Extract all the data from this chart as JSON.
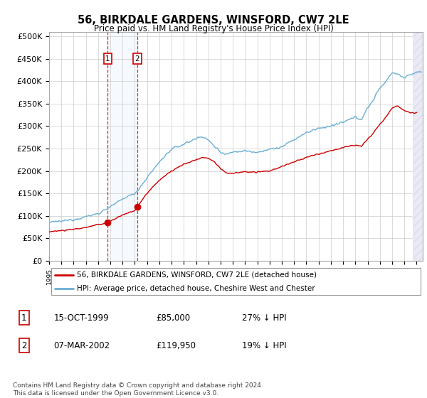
{
  "title": "56, BIRKDALE GARDENS, WINSFORD, CW7 2LE",
  "subtitle": "Price paid vs. HM Land Registry's House Price Index (HPI)",
  "ylabel_ticks": [
    "£0",
    "£50K",
    "£100K",
    "£150K",
    "£200K",
    "£250K",
    "£300K",
    "£350K",
    "£400K",
    "£450K",
    "£500K"
  ],
  "ylim": [
    0,
    510000
  ],
  "xlim_start": 1995.0,
  "xlim_end": 2025.5,
  "sale1_date": 1999.79,
  "sale1_price": 85000,
  "sale1_label": "1",
  "sale2_date": 2002.18,
  "sale2_price": 119950,
  "sale2_label": "2",
  "legend_line1": "56, BIRKDALE GARDENS, WINSFORD, CW7 2LE (detached house)",
  "legend_line2": "HPI: Average price, detached house, Cheshire West and Chester",
  "table_rows": [
    [
      "1",
      "15-OCT-1999",
      "£85,000",
      "27% ↓ HPI"
    ],
    [
      "2",
      "07-MAR-2002",
      "£119,950",
      "19% ↓ HPI"
    ]
  ],
  "footnote": "Contains HM Land Registry data © Crown copyright and database right 2024.\nThis data is licensed under the Open Government Licence v3.0.",
  "hpi_color": "#6aaed6",
  "price_color": "#cc0000",
  "sale_marker_color": "#cc0000",
  "shading_color": "#ddeeff",
  "grid_color": "#cccccc",
  "background_color": "#ffffff"
}
